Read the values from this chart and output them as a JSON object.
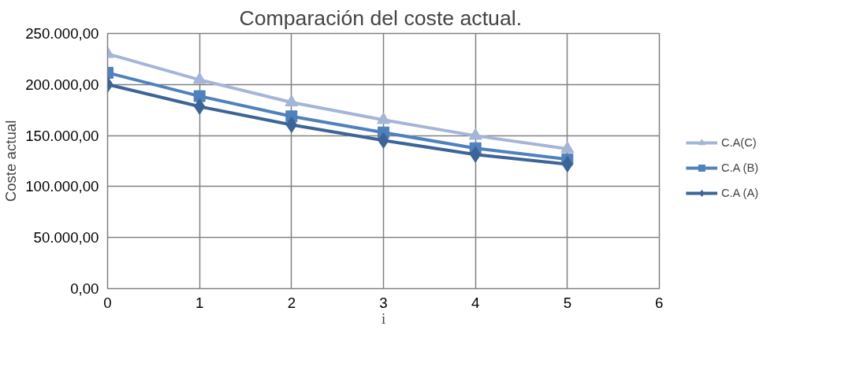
{
  "chart_data": {
    "type": "line",
    "title": "Comparación del  coste actual.",
    "xlabel": "i",
    "ylabel": "Coste actual",
    "x": [
      0,
      1,
      2,
      3,
      4,
      5
    ],
    "series": [
      {
        "name": "C.A(C)",
        "color": "#a5b5d7",
        "marker": "triangle",
        "values": [
          230000,
          204600,
          182500,
          165300,
          149800,
          137000
        ]
      },
      {
        "name": "C.A (B)",
        "color": "#4f81bd",
        "marker": "square",
        "values": [
          211500,
          188600,
          168800,
          153000,
          137600,
          126800
        ]
      },
      {
        "name": "C.A (A)",
        "color": "#3c6497",
        "marker": "diamond",
        "values": [
          200000,
          178400,
          160500,
          145200,
          131400,
          121900
        ]
      }
    ],
    "xlim": [
      0,
      6
    ],
    "xticks": [
      0,
      1,
      2,
      3,
      4,
      5,
      6
    ],
    "ylim": [
      0,
      250000
    ],
    "yticks": [
      {
        "value": 0,
        "label": "0,00"
      },
      {
        "value": 50000,
        "label": "50.000,00"
      },
      {
        "value": 100000,
        "label": "100.000,00"
      },
      {
        "value": 150000,
        "label": "150.000,00"
      },
      {
        "value": 200000,
        "label": "200.000,00"
      },
      {
        "value": 250000,
        "label": "250.000,00"
      }
    ],
    "grid": true,
    "legend": "right",
    "line_style": "solid"
  }
}
